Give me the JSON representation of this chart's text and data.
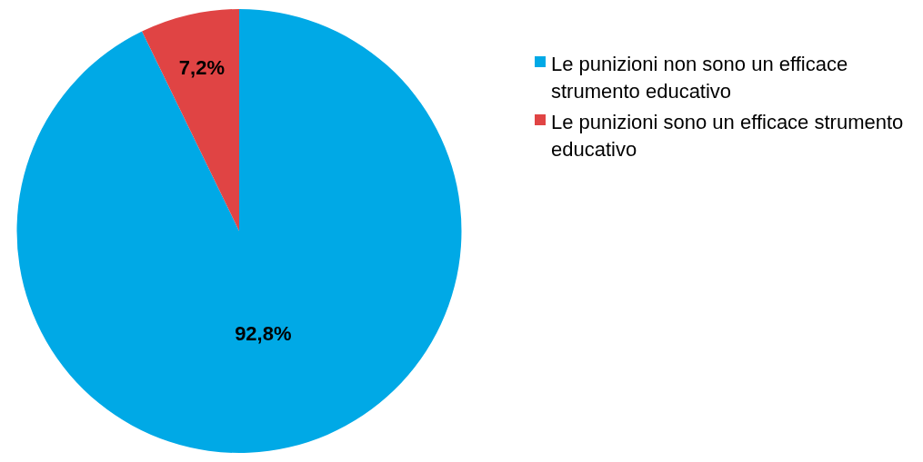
{
  "chart_data": {
    "type": "pie",
    "categories": [
      "Le punizioni non sono un efficace strumento educativo",
      "Le punizioni sono un efficace strumento educativo"
    ],
    "values": [
      92.8,
      7.2
    ],
    "value_labels": [
      "92,8%",
      "7,2%"
    ],
    "colors": [
      "#00a9e6",
      "#e04444"
    ],
    "legend": "top right"
  }
}
